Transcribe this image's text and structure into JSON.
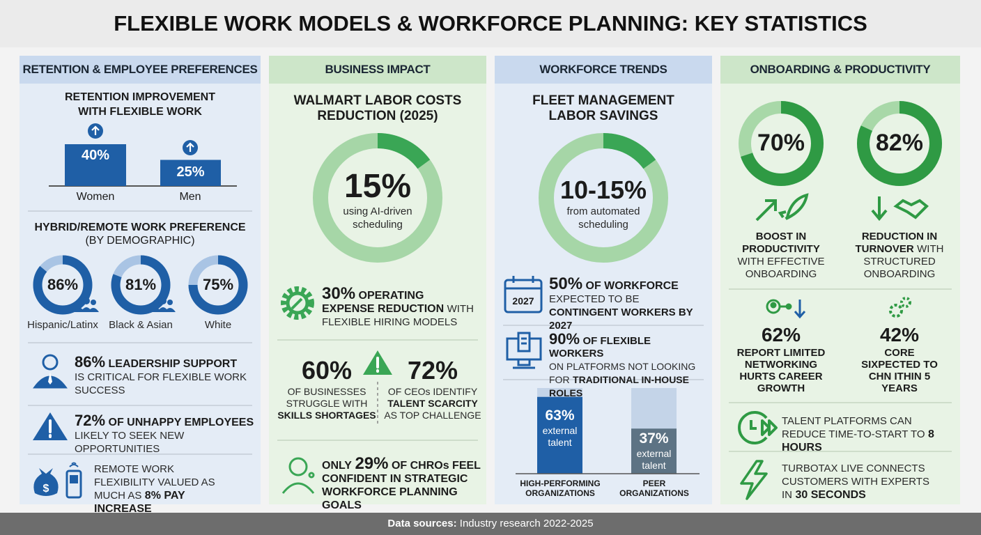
{
  "header": {
    "title": "FLEXIBLE WORK MODELS & WORKFORCE PLANNING: KEY STATISTICS"
  },
  "retention": {
    "heading": "RETENTION & EMPLOYEE PREFERENCES",
    "chart_title": "RETENTION IMPROVEMENT WITH FLEXIBLE WORK",
    "bars": [
      {
        "label": "Women",
        "value": 40,
        "value_label": "40%"
      },
      {
        "label": "Men",
        "value": 25,
        "value_label": "25%"
      }
    ],
    "preference_title": "HYBRID/REMOTE WORK PREFERENCE",
    "preference_subtitle": "(BY DEMOGRAPHIC)",
    "donuts": [
      {
        "label": "Hispanic/Latinx",
        "value": 86,
        "value_label": "86%"
      },
      {
        "label": "Black & Asian",
        "value": 81,
        "value_label": "81%"
      },
      {
        "label": "White",
        "value": 75,
        "value_label": "75%"
      }
    ],
    "leadership": {
      "stat": "86%",
      "bold": "LEADERSHIP SUPPORT",
      "text": "IS CRITICAL FOR FLEXIBLE WORK SUCCESS"
    },
    "unhappy": {
      "stat": "72%",
      "bold": "OF UNHAPPY EMPLOYEES",
      "text": "LIKELY TO SEEK NEW OPPORTUNITIES"
    },
    "pay": {
      "text": "REMOTE WORK FLEXIBILITY VALUED AS MUCH AS",
      "bold": "8% PAY INCREASE"
    }
  },
  "business": {
    "heading": "BUSINESS IMPACT",
    "donut": {
      "title": "WALMART LABOR COSTS REDUCTION (2025)",
      "value": 15,
      "value_label": "15%",
      "caption": "using AI-driven scheduling"
    },
    "opex": {
      "stat": "30%",
      "bold": "OPERATING EXPENSE REDUCTION",
      "text": "WITH FLEXIBLE HIRING MODELS"
    },
    "skills": {
      "stat": "60%",
      "text": "OF BUSINESSES STRUGGLE WITH",
      "bold": "SKILLS SHORTAGES"
    },
    "ceos": {
      "stat": "72%",
      "text": "OF CEOs IDENTIFY",
      "bold": "TALENT SCARCITY",
      "text2": "AS TOP CHALLENGE"
    },
    "chros": {
      "lead": "ONLY",
      "stat": "29%",
      "bold": "OF CHROs FEEL CONFIDENT IN STRATEGIC WORKFORCE PLANNING GOALS"
    }
  },
  "workforce": {
    "heading": "WORKFORCE TRENDS",
    "donut": {
      "title": "FLEET MANAGEMENT LABOR SAVINGS",
      "value": 15,
      "value_label": "10-15%",
      "caption": "from automated scheduling"
    },
    "contingent": {
      "icon_label": "2027",
      "stat": "50%",
      "bold": "OF WORKFORCE",
      "text": "EXPECTED TO BE",
      "bold2": "CONTINGENT WORKERS BY 2027"
    },
    "platforms": {
      "stat": "90%",
      "bold": "OF FLEXIBLE WORKERS",
      "text": "ON PLATFORMS NOT LOOKING FOR",
      "bold2": "TRADITIONAL IN-HOUSE ROLES"
    },
    "bars": [
      {
        "label": "HIGH-PERFORMING ORGANIZATIONS",
        "value": 63,
        "value_label": "63%",
        "caption": "external talent"
      },
      {
        "label": "PEER ORGANIZATIONS",
        "value": 37,
        "value_label": "37%",
        "caption": "external talent"
      }
    ]
  },
  "onboarding": {
    "heading": "ONBOARDING & PRODUCTIVITY",
    "donuts": [
      {
        "value": 70,
        "value_label": "70%",
        "bold": "BOOST IN PRODUCTIVITY",
        "text": "WITH EFFECTIVE ONBOARDING"
      },
      {
        "value": 82,
        "value_label": "82%",
        "bold": "REDUCTION IN TURNOVER",
        "text": "WITH STRUCTURED ONBOARDING"
      }
    ],
    "networking": {
      "stat": "62%",
      "bold": "REPORT LIMITED NETWORKING HURTS CAREER GROWTH"
    },
    "core": {
      "stat": "42%",
      "bold": "CORE SIXPECTED TO CHN ITHIN 5 YEARS"
    },
    "platforms": {
      "text": "TALENT PLATFORMS CAN REDUCE TIME-TO-START TO",
      "bold": "8 HOURS"
    },
    "turbotax": {
      "text": "TURBOTAX LIVE CONNECTS CUSTOMERS WITH EXPERTS IN",
      "bold": "30 SECONDS"
    }
  },
  "footer": {
    "label": "Data sources:",
    "text": "Industry research 2022-2025"
  }
}
